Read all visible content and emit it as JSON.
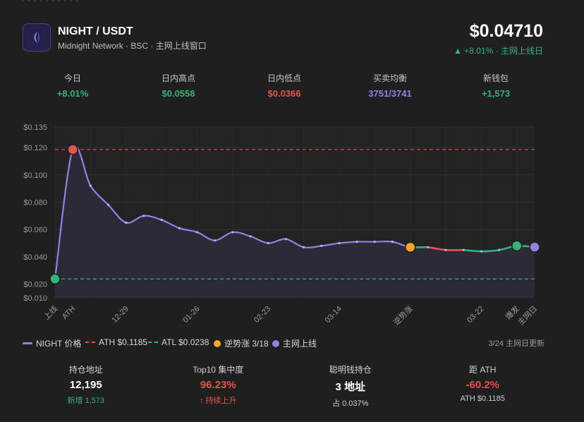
{
  "header": {
    "pair": "NIGHT / USDT",
    "subtitle": "Midnight Network · BSC · 主网上线窗口",
    "price": "$0.04710",
    "change": "▲ +8.01% · 主网上线日"
  },
  "stats": [
    {
      "label": "今日",
      "value": "+8.01%",
      "color": "#34b27b"
    },
    {
      "label": "日内高点",
      "value": "$0.0558",
      "color": "#34b27b"
    },
    {
      "label": "日内低点",
      "value": "$0.0366",
      "color": "#e5534b"
    },
    {
      "label": "买卖均衡",
      "value": "3751/3741",
      "color": "#8f84e6"
    },
    {
      "label": "新钱包",
      "value": "+1,573",
      "color": "#34b27b"
    }
  ],
  "chart_data": {
    "type": "line",
    "title": "NIGHT 价格",
    "x_labels": [
      "上线",
      "ATH",
      "12-29",
      "01-26",
      "02-23",
      "03-14",
      "逆势涨",
      "03-22",
      "爆发",
      "主网日"
    ],
    "y_ticks": [
      "$0.135",
      "$0.120",
      "$0.100",
      "$0.080",
      "$0.060",
      "$0.040",
      "$0.020",
      "$0.010"
    ],
    "ylim": [
      0.01,
      0.135
    ],
    "n_points": 28,
    "label_index": [
      0,
      1,
      4,
      8,
      12,
      16,
      20,
      24,
      26,
      27
    ],
    "values": [
      0.0238,
      0.1185,
      0.092,
      0.078,
      0.065,
      0.07,
      0.067,
      0.061,
      0.058,
      0.052,
      0.058,
      0.055,
      0.05,
      0.053,
      0.047,
      0.048,
      0.05,
      0.051,
      0.051,
      0.051,
      0.047,
      0.047,
      0.045,
      0.045,
      0.044,
      0.045,
      0.048,
      0.0471
    ],
    "reference_lines": [
      {
        "name": "ATH",
        "value": 0.1185,
        "color": "#e5534b"
      },
      {
        "name": "ATL",
        "value": 0.0238,
        "color": "#34b27b"
      }
    ],
    "markers": [
      {
        "name": "ATH",
        "index": 1,
        "color": "#e5534b"
      },
      {
        "name": "ATL",
        "index": 0,
        "color": "#34b27b"
      },
      {
        "name": "逆势涨",
        "index": 20,
        "color": "#f5a623"
      },
      {
        "name": "爆发",
        "index": 26,
        "color": "#34b27b"
      },
      {
        "name": "主网上线",
        "index": 27,
        "color": "#8f84e6"
      }
    ],
    "green_ranges": [
      [
        20,
        21
      ],
      [
        23,
        27
      ]
    ],
    "red_ranges": [
      [
        21,
        23
      ]
    ]
  },
  "legend": {
    "price": "NIGHT 价格",
    "ath": "ATH $0.1185",
    "atl": "ATL $0.0238",
    "rebound": "逆势涨 3/18",
    "mainnet": "主网上线",
    "note": "3/24 主网日更新"
  },
  "footer": [
    {
      "label": "持仓地址",
      "value": "12,195",
      "sub": "新增 1,573",
      "value_color": "#ffffff",
      "sub_color": "#34b27b"
    },
    {
      "label": "Top10 集中度",
      "value": "96.23%",
      "sub": "↑ 持续上升",
      "value_color": "#e5534b",
      "sub_color": "#e5534b"
    },
    {
      "label": "聪明钱持仓",
      "value": "3 地址",
      "sub": "占 0.037%",
      "value_color": "#ffffff",
      "sub_color": "#d0d0d0"
    },
    {
      "label": "距 ATH",
      "value": "-60.2%",
      "sub": "ATH $0.1185",
      "value_color": "#e5534b",
      "sub_color": "#d0d0d0"
    }
  ],
  "colors": {
    "line": "#8f84e6",
    "up": "#34b27b",
    "down": "#e5534b",
    "accent": "#f5a623"
  }
}
